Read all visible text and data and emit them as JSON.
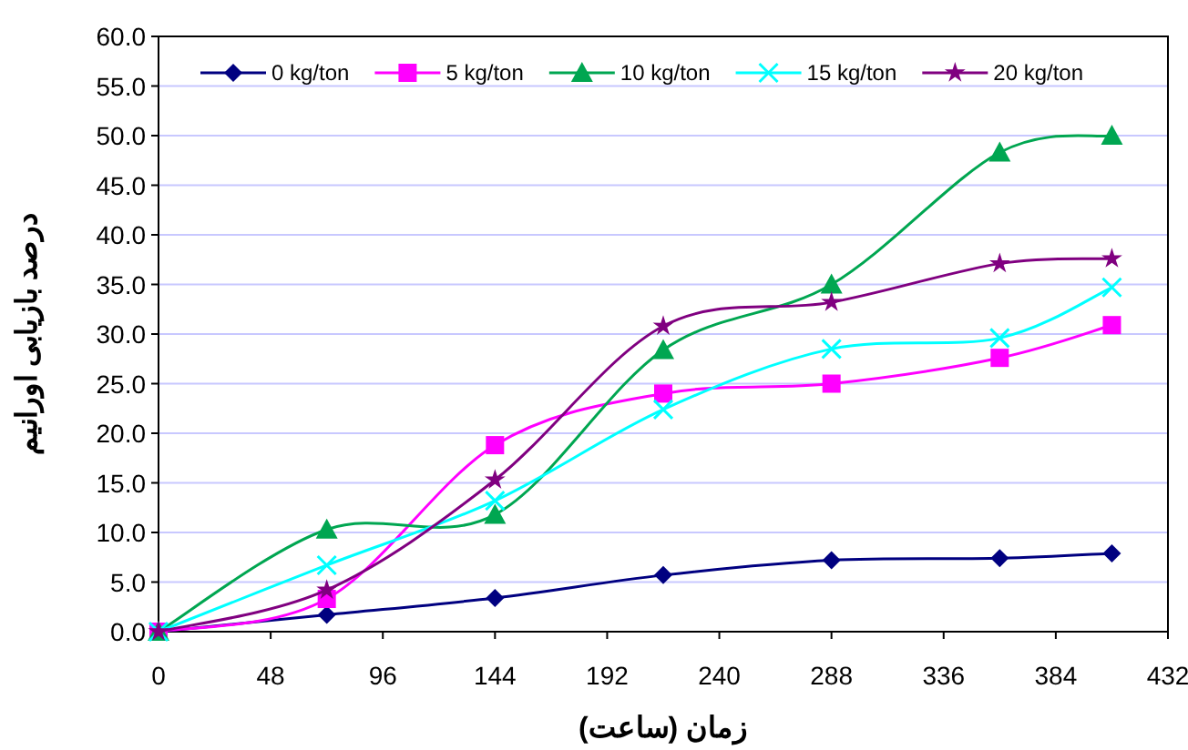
{
  "chart_data": {
    "type": "line",
    "xlabel": "زمان (ساعت)",
    "ylabel": "درصد بازیابی اورانیم",
    "x": [
      0,
      72,
      144,
      216,
      288,
      360,
      408
    ],
    "series": [
      {
        "name": "0 kg/ton",
        "color": "#000080",
        "marker": "diamond",
        "values": [
          0,
          1.7,
          3.4,
          5.7,
          7.2,
          7.4,
          7.9
        ]
      },
      {
        "name": "5 kg/ton",
        "color": "#ff00ff",
        "marker": "square",
        "values": [
          0,
          3.3,
          18.8,
          24,
          25,
          27.6,
          30.9
        ]
      },
      {
        "name": "10 kg/ton",
        "color": "#00a651",
        "marker": "triangle",
        "values": [
          0,
          10.3,
          11.8,
          28.4,
          35,
          48.3,
          50
        ]
      },
      {
        "name": "15 kg/ton",
        "color": "#00ffff",
        "marker": "cross",
        "values": [
          0,
          6.7,
          13.2,
          22.4,
          28.5,
          29.6,
          34.7
        ]
      },
      {
        "name": "20 kg/ton",
        "color": "#800080",
        "marker": "star",
        "values": [
          0,
          4.2,
          15.3,
          30.8,
          33.2,
          37.1,
          37.6
        ]
      }
    ],
    "xlim": [
      0,
      432
    ],
    "xticks": [
      0,
      48,
      96,
      144,
      192,
      240,
      288,
      336,
      384,
      432
    ],
    "ylim": [
      0,
      60
    ],
    "yticks": [
      {
        "value": 0,
        "label": "0.0"
      },
      {
        "value": 5,
        "label": "5.0"
      },
      {
        "value": 10,
        "label": "10.0"
      },
      {
        "value": 15,
        "label": "15.0"
      },
      {
        "value": 20,
        "label": "20.0"
      },
      {
        "value": 25,
        "label": "25.0"
      },
      {
        "value": 30,
        "label": "30.0"
      },
      {
        "value": 35,
        "label": "35.0"
      },
      {
        "value": 40,
        "label": "40.0"
      },
      {
        "value": 45,
        "label": "45.0"
      },
      {
        "value": 50,
        "label": "50.0"
      },
      {
        "value": 55,
        "label": "55.0"
      },
      {
        "value": 60,
        "label": "60.0"
      }
    ],
    "grid": "y",
    "legend": "top",
    "line_style": "solid"
  }
}
